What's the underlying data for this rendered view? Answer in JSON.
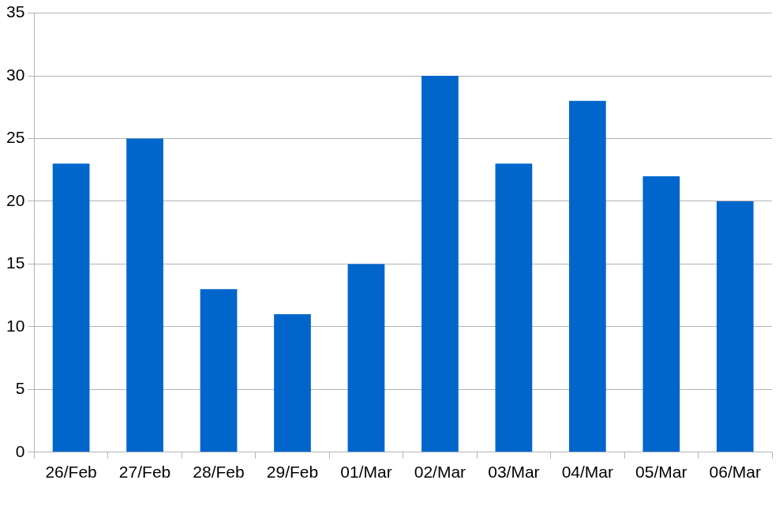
{
  "chart_data": {
    "type": "bar",
    "categories": [
      "26/Feb",
      "27/Feb",
      "28/Feb",
      "29/Feb",
      "01/Mar",
      "02/Mar",
      "03/Mar",
      "04/Mar",
      "05/Mar",
      "06/Mar"
    ],
    "values": [
      23,
      25,
      13,
      11,
      15,
      30,
      23,
      28,
      22,
      20
    ],
    "color": "#0066cc",
    "ylim": [
      0,
      35
    ],
    "yticks": [
      0,
      5,
      10,
      15,
      20,
      25,
      30,
      35
    ],
    "grid": true
  }
}
